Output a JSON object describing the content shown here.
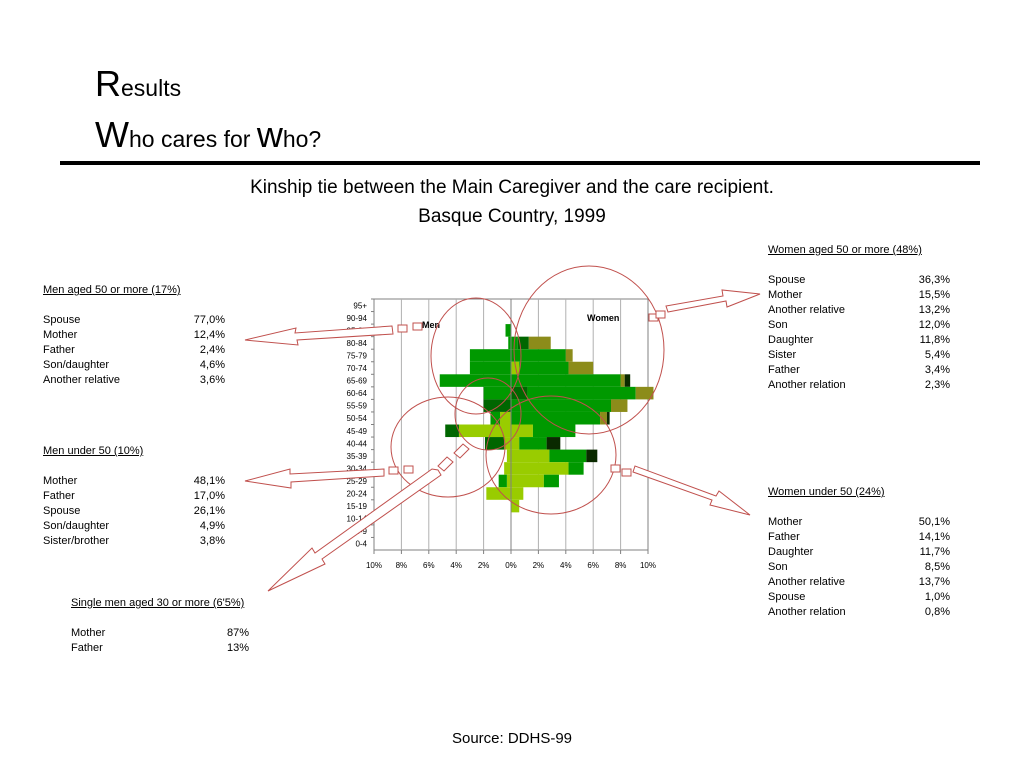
{
  "heading": {
    "line1_initial": "R",
    "line1_rest": "esults",
    "line2_initial": "W",
    "line2_middle": "ho cares for ",
    "line2_initial2": "w",
    "line2_rest": "ho?"
  },
  "subtitle": {
    "line1": "Kinship tie between the Main Caregiver and the care recipient.",
    "line2": "Basque Country, 1999"
  },
  "panels": {
    "women_50_plus": {
      "title": "Women aged 50 or more (48%)",
      "rows": [
        {
          "label": "Spouse",
          "value": "36,3%"
        },
        {
          "label": "Mother",
          "value": "15,5%"
        },
        {
          "label": "Another relative",
          "value": "13,2%"
        },
        {
          "label": "Son",
          "value": "12,0%"
        },
        {
          "label": "Daughter",
          "value": "11,8%"
        },
        {
          "label": "Sister",
          "value": "5,4%"
        },
        {
          "label": "Father",
          "value": "3,4%"
        },
        {
          "label": "Another relation",
          "value": "2,3%"
        }
      ]
    },
    "men_50_plus": {
      "title": "Men aged 50 or more (17%)",
      "rows": [
        {
          "label": "Spouse",
          "value": "77,0%"
        },
        {
          "label": "Mother",
          "value": "12,4%"
        },
        {
          "label": "Father",
          "value": "2,4%"
        },
        {
          "label": "Son/daughter",
          "value": "4,6%"
        },
        {
          "label": "Another relative",
          "value": "3,6%"
        }
      ]
    },
    "men_under_50": {
      "title": "Men under 50 (10%)",
      "rows": [
        {
          "label": "Mother",
          "value": "48,1%"
        },
        {
          "label": "Father",
          "value": "17,0%"
        },
        {
          "label": "Spouse",
          "value": "26,1%"
        },
        {
          "label": "Son/daughter",
          "value": "4,9%"
        },
        {
          "label": "Sister/brother",
          "value": "3,8%"
        }
      ]
    },
    "women_under_50": {
      "title": "Women under 50 (24%)",
      "rows": [
        {
          "label": "Mother",
          "value": "50,1%"
        },
        {
          "label": "Father",
          "value": "14,1%"
        },
        {
          "label": "Daughter",
          "value": "11,7%"
        },
        {
          "label": "Son",
          "value": "8,5%"
        },
        {
          "label": "Another relative",
          "value": "13,7%"
        },
        {
          "label": "Spouse",
          "value": "1,0%"
        },
        {
          "label": "Another relation",
          "value": "0,8%"
        }
      ]
    },
    "single_men_30_plus": {
      "title": "Single men aged 30 or more (6'5%)",
      "rows": [
        {
          "label": "Mother",
          "value": "87%"
        },
        {
          "label": "Father",
          "value": "13%"
        }
      ]
    }
  },
  "source": "Source: DDHS-99",
  "colors": {
    "dark_green": "#006600",
    "mid_green": "#009900",
    "light_green": "#99cc00",
    "olive": "#8c8c1a",
    "near_black": "#0a2a00",
    "annotation_red": "#c0504d"
  },
  "chart_data": {
    "type": "bar",
    "orientation": "population-pyramid",
    "categories": [
      "95+",
      "90-94",
      "85-89",
      "80-84",
      "75-79",
      "70-74",
      "65-69",
      "60-64",
      "55-59",
      "50-54",
      "45-49",
      "40-44",
      "35-39",
      "30-34",
      "25-29",
      "20-24",
      "15-19",
      "10-14",
      "5-9",
      "0-4"
    ],
    "x_ticks": [
      "10%",
      "8%",
      "6%",
      "4%",
      "2%",
      "0%",
      "2%",
      "4%",
      "6%",
      "8%",
      "10%"
    ],
    "xlim": [
      -10,
      10
    ],
    "grid": true,
    "series_labels": {
      "left": "Men",
      "right": "Women"
    },
    "segment_colors": {
      "a": "#006600",
      "b": "#009900",
      "c": "#99cc00",
      "d": "#8c8c1a",
      "e": "#0a2a00"
    },
    "bars": [
      {
        "age": "85-89",
        "side": "men",
        "segments": [
          {
            "c": "b",
            "v": 0.4
          }
        ]
      },
      {
        "age": "80-84",
        "side": "men",
        "segments": [
          {
            "c": "b",
            "v": 0.2
          }
        ]
      },
      {
        "age": "80-84",
        "side": "women",
        "segments": [
          {
            "c": "b",
            "v": 0.5
          },
          {
            "c": "a",
            "v": 0.8
          },
          {
            "c": "d",
            "v": 1.6
          }
        ]
      },
      {
        "age": "75-79",
        "side": "men",
        "segments": [
          {
            "c": "b",
            "v": 3.0
          }
        ]
      },
      {
        "age": "75-79",
        "side": "women",
        "segments": [
          {
            "c": "b",
            "v": 4.0
          },
          {
            "c": "d",
            "v": 0.5
          }
        ]
      },
      {
        "age": "70-74",
        "side": "men",
        "segments": [
          {
            "c": "b",
            "v": 3.0
          }
        ]
      },
      {
        "age": "70-74",
        "side": "women",
        "segments": [
          {
            "c": "c",
            "v": 0.6
          },
          {
            "c": "b",
            "v": 3.6
          },
          {
            "c": "d",
            "v": 1.8
          }
        ]
      },
      {
        "age": "65-69",
        "side": "men",
        "segments": [
          {
            "c": "b",
            "v": 5.2
          }
        ]
      },
      {
        "age": "65-69",
        "side": "women",
        "segments": [
          {
            "c": "b",
            "v": 8.0
          },
          {
            "c": "d",
            "v": 0.3
          },
          {
            "c": "e",
            "v": 0.4
          }
        ]
      },
      {
        "age": "60-64",
        "side": "men",
        "segments": [
          {
            "c": "b",
            "v": 2.0
          }
        ]
      },
      {
        "age": "60-64",
        "side": "women",
        "segments": [
          {
            "c": "a",
            "v": 1.2
          },
          {
            "c": "b",
            "v": 7.9
          },
          {
            "c": "d",
            "v": 1.3
          }
        ]
      },
      {
        "age": "55-59",
        "side": "men",
        "segments": [
          {
            "c": "a",
            "v": 2.0
          }
        ]
      },
      {
        "age": "55-59",
        "side": "women",
        "segments": [
          {
            "c": "b",
            "v": 7.3
          },
          {
            "c": "d",
            "v": 1.2
          }
        ]
      },
      {
        "age": "50-54",
        "side": "men",
        "segments": [
          {
            "c": "c",
            "v": 0.8
          },
          {
            "c": "b",
            "v": 0.7
          }
        ]
      },
      {
        "age": "50-54",
        "side": "women",
        "segments": [
          {
            "c": "b",
            "v": 6.5
          },
          {
            "c": "d",
            "v": 0.5
          },
          {
            "c": "e",
            "v": 0.2
          }
        ]
      },
      {
        "age": "45-49",
        "side": "men",
        "segments": [
          {
            "c": "c",
            "v": 3.8
          },
          {
            "c": "a",
            "v": 1.0
          }
        ]
      },
      {
        "age": "45-49",
        "side": "women",
        "segments": [
          {
            "c": "c",
            "v": 1.6
          },
          {
            "c": "b",
            "v": 3.1
          }
        ]
      },
      {
        "age": "40-44",
        "side": "men",
        "segments": [
          {
            "c": "c",
            "v": 0.5
          },
          {
            "c": "a",
            "v": 1.4
          }
        ]
      },
      {
        "age": "40-44",
        "side": "women",
        "segments": [
          {
            "c": "c",
            "v": 0.6
          },
          {
            "c": "b",
            "v": 2.0
          },
          {
            "c": "e",
            "v": 1.0
          }
        ]
      },
      {
        "age": "35-39",
        "side": "men",
        "segments": [
          {
            "c": "c",
            "v": 0.3
          }
        ]
      },
      {
        "age": "35-39",
        "side": "women",
        "segments": [
          {
            "c": "c",
            "v": 2.8
          },
          {
            "c": "b",
            "v": 2.7
          },
          {
            "c": "e",
            "v": 0.8
          }
        ]
      },
      {
        "age": "30-34",
        "side": "men",
        "segments": [
          {
            "c": "c",
            "v": 0.5
          }
        ]
      },
      {
        "age": "30-34",
        "side": "women",
        "segments": [
          {
            "c": "c",
            "v": 4.2
          },
          {
            "c": "b",
            "v": 1.1
          }
        ]
      },
      {
        "age": "25-29",
        "side": "men",
        "segments": [
          {
            "c": "c",
            "v": 0.3
          },
          {
            "c": "b",
            "v": 0.6
          }
        ]
      },
      {
        "age": "25-29",
        "side": "women",
        "segments": [
          {
            "c": "c",
            "v": 2.4
          },
          {
            "c": "b",
            "v": 1.1
          }
        ]
      },
      {
        "age": "20-24",
        "side": "men",
        "segments": [
          {
            "c": "c",
            "v": 1.8
          }
        ]
      },
      {
        "age": "20-24",
        "side": "women",
        "segments": [
          {
            "c": "c",
            "v": 0.9
          }
        ]
      },
      {
        "age": "15-19",
        "side": "women",
        "segments": [
          {
            "c": "c",
            "v": 0.6
          }
        ]
      }
    ]
  }
}
